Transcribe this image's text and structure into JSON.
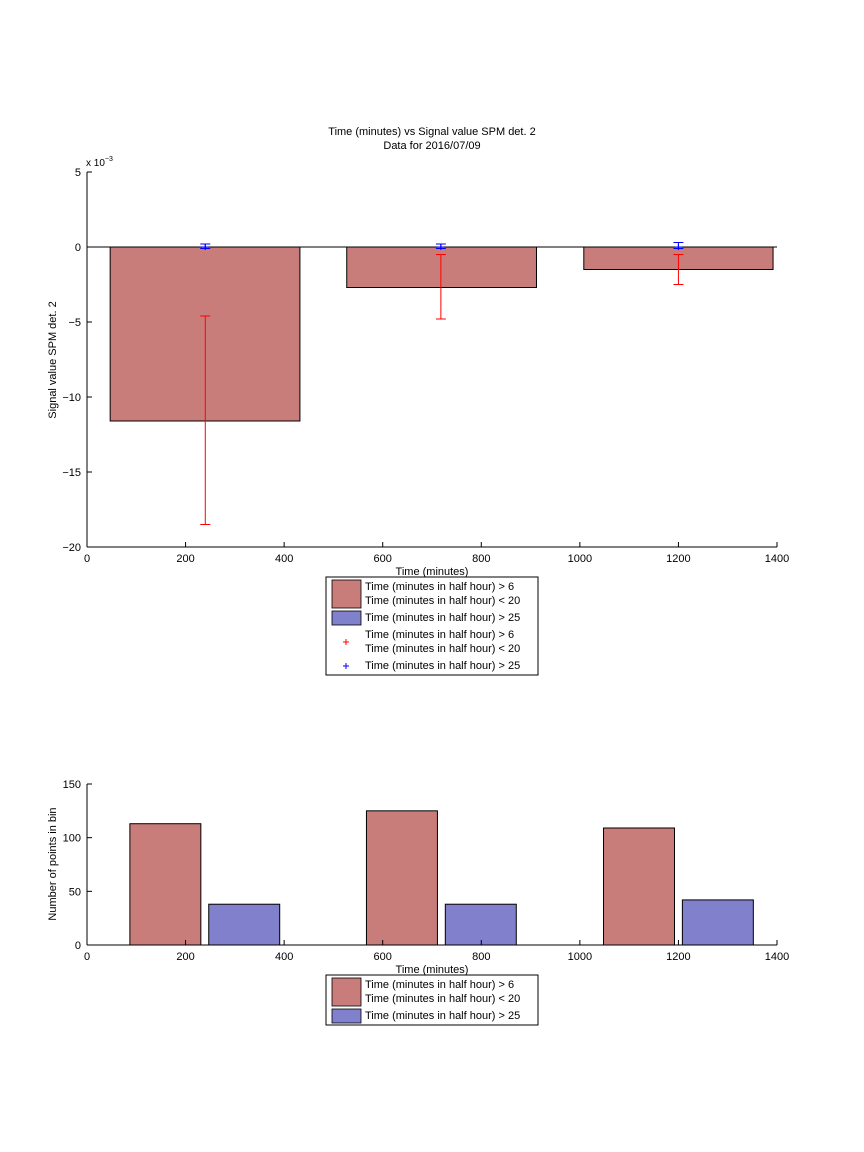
{
  "chart_data": [
    {
      "type": "bar",
      "title": "Time (minutes) vs Signal value SPM det. 2",
      "subtitle": "Data for 2016/07/09",
      "xlabel": "Time (minutes)",
      "ylabel": "Signal value SPM det. 2",
      "exponent_label": "x 10",
      "exponent_power": "−3",
      "xlim": [
        0,
        1400
      ],
      "ylim": [
        -0.02,
        0.005
      ],
      "xticks": [
        0,
        200,
        400,
        600,
        800,
        1000,
        1200,
        1400
      ],
      "yticks": [
        5,
        0,
        -5,
        -10,
        -15,
        -20
      ],
      "ytick_labels": [
        "5",
        "0",
        "−5",
        "−10",
        "−15",
        "−20"
      ],
      "yticks_scaled_by": 0.001,
      "grid": false,
      "legend_position": "below",
      "bars": [
        {
          "x_start": 47,
          "x_end": 432,
          "value": -0.0116,
          "color": "#c97d7b"
        },
        {
          "x_start": 527,
          "x_end": 912,
          "value": -0.0027,
          "color": "#c97d7b"
        },
        {
          "x_start": 1008,
          "x_end": 1392,
          "value": -0.0015,
          "color": "#c97d7b"
        }
      ],
      "series": [
        {
          "name": "Time (minutes in half hour) > 6 Time (minutes in half hour) < 20",
          "color": "#ff0000",
          "points": [
            {
              "x": 240,
              "y": 0.0,
              "low": -0.0185,
              "high": -0.0046
            },
            {
              "x": 718,
              "y": 0.0,
              "low": -0.0048,
              "high": -0.0005
            },
            {
              "x": 1200,
              "y": 0.0,
              "low": -0.0025,
              "high": -0.0005
            }
          ]
        },
        {
          "name": "Time (minutes in half hour) > 25",
          "color": "#0000ff",
          "points": [
            {
              "x": 240,
              "y": 0.0,
              "low": -0.0001,
              "high": 0.0002
            },
            {
              "x": 718,
              "y": 0.0,
              "low": -0.0001,
              "high": 0.0002
            },
            {
              "x": 1200,
              "y": 0.0,
              "low": -0.0001,
              "high": 0.0003
            }
          ]
        }
      ],
      "legend": [
        {
          "kind": "patch",
          "color": "#c97d7b",
          "lines": [
            "Time (minutes in half hour) > 6",
            "Time (minutes in half hour) < 20"
          ]
        },
        {
          "kind": "patch",
          "color": "#8080cc",
          "lines": [
            "Time (minutes in half hour) > 25"
          ]
        },
        {
          "kind": "marker",
          "color": "#ff0000",
          "lines": [
            "Time (minutes in half hour) > 6",
            "Time (minutes in half hour) < 20"
          ]
        },
        {
          "kind": "marker",
          "color": "#0000ff",
          "lines": [
            "Time (minutes in half hour) > 25"
          ]
        }
      ]
    },
    {
      "type": "bar",
      "xlabel": "Time (minutes)",
      "ylabel": "Number of points in bin",
      "xlim": [
        0,
        1400
      ],
      "ylim": [
        0,
        150
      ],
      "xticks": [
        0,
        200,
        400,
        600,
        800,
        1000,
        1200,
        1400
      ],
      "yticks": [
        0,
        50,
        100,
        150
      ],
      "grid": false,
      "legend_position": "below",
      "series": [
        {
          "name": "Time (minutes in half hour) > 6 Time (minutes in half hour) < 20",
          "color": "#c97d7b",
          "bars": [
            {
              "x_start": 87,
              "x_end": 231,
              "value": 113
            },
            {
              "x_start": 567,
              "x_end": 711,
              "value": 125
            },
            {
              "x_start": 1048,
              "x_end": 1192,
              "value": 109
            }
          ]
        },
        {
          "name": "Time (minutes in half hour) > 25",
          "color": "#8080cc",
          "bars": [
            {
              "x_start": 247,
              "x_end": 391,
              "value": 38
            },
            {
              "x_start": 727,
              "x_end": 871,
              "value": 38
            },
            {
              "x_start": 1208,
              "x_end": 1352,
              "value": 42
            }
          ]
        }
      ],
      "legend": [
        {
          "kind": "patch",
          "color": "#c97d7b",
          "lines": [
            "Time (minutes in half hour) > 6",
            "Time (minutes in half hour) < 20"
          ]
        },
        {
          "kind": "patch",
          "color": "#8080cc",
          "lines": [
            "Time (minutes in half hour) > 25"
          ]
        }
      ]
    }
  ]
}
